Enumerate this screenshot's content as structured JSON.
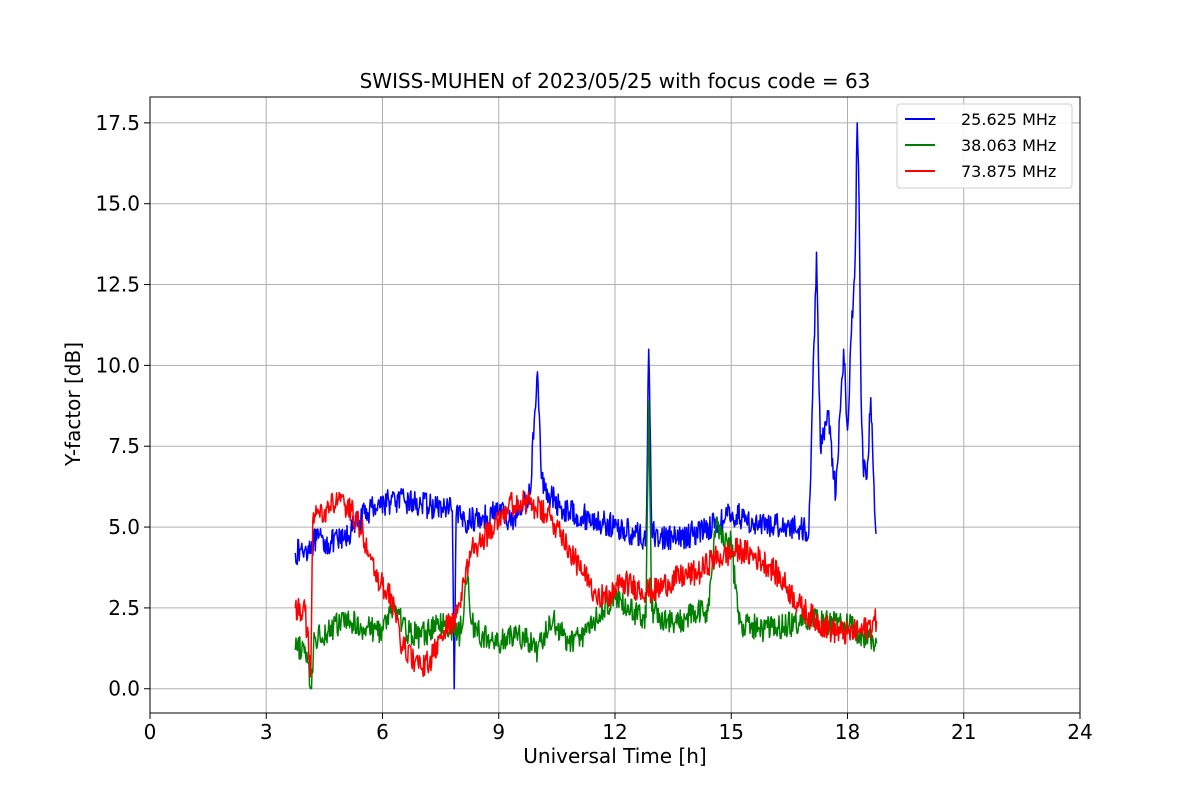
{
  "chart_data": {
    "type": "line",
    "title": "SWISS-MUHEN of 2023/05/25 with focus code = 63",
    "xlabel": "Universal Time [h]",
    "ylabel": "Y-factor [dB]",
    "xlim": [
      0,
      24
    ],
    "ylim": [
      -0.75,
      18.3
    ],
    "xticks": [
      0,
      3,
      6,
      9,
      12,
      15,
      18,
      21,
      24
    ],
    "xtick_labels": [
      "0",
      "3",
      "6",
      "9",
      "12",
      "15",
      "18",
      "21",
      "24"
    ],
    "yticks": [
      0.0,
      2.5,
      5.0,
      7.5,
      10.0,
      12.5,
      15.0,
      17.5
    ],
    "ytick_labels": [
      "0.0",
      "2.5",
      "5.0",
      "7.5",
      "10.0",
      "12.5",
      "15.0",
      "17.5"
    ],
    "grid": true,
    "legend_position": "top-right",
    "series": [
      {
        "name": "25.625 MHz",
        "color": "#0000ff",
        "x": [
          3.75,
          4.0,
          4.3,
          4.6,
          5.0,
          5.4,
          5.8,
          6.2,
          6.6,
          7.0,
          7.4,
          7.8,
          7.85,
          7.9,
          8.2,
          8.6,
          9.0,
          9.3,
          9.6,
          9.8,
          10.0,
          10.1,
          10.3,
          10.6,
          11.0,
          11.5,
          12.0,
          12.5,
          12.8,
          12.87,
          12.95,
          13.2,
          13.6,
          14.0,
          14.4,
          14.8,
          15.0,
          15.3,
          15.6,
          15.9,
          16.2,
          16.5,
          16.8,
          17.0,
          17.1,
          17.2,
          17.3,
          17.5,
          17.7,
          17.9,
          18.0,
          18.1,
          18.2,
          18.25,
          18.3,
          18.35,
          18.4,
          18.5,
          18.6,
          18.7,
          18.75
        ],
        "y": [
          4.2,
          4.3,
          4.6,
          4.5,
          4.6,
          5.2,
          5.7,
          5.8,
          5.8,
          5.7,
          5.6,
          5.5,
          0.0,
          5.3,
          5.2,
          5.3,
          5.5,
          5.2,
          5.6,
          6.0,
          9.8,
          6.5,
          6.0,
          5.6,
          5.4,
          5.2,
          5.0,
          4.8,
          4.6,
          10.5,
          4.8,
          4.7,
          4.6,
          4.8,
          5.0,
          5.2,
          5.4,
          5.3,
          5.1,
          5.0,
          5.1,
          5.0,
          5.0,
          4.8,
          9.0,
          13.5,
          7.5,
          8.5,
          6.0,
          10.5,
          8.0,
          11.0,
          13.5,
          17.5,
          15.0,
          9.0,
          7.0,
          6.5,
          9.0,
          5.5,
          4.8
        ]
      },
      {
        "name": "38.063 MHz",
        "color": "#008000",
        "x": [
          3.75,
          4.0,
          4.15,
          4.25,
          4.6,
          5.0,
          5.5,
          6.0,
          6.3,
          6.6,
          7.0,
          7.4,
          7.8,
          8.0,
          8.2,
          8.3,
          8.6,
          9.0,
          9.5,
          10.0,
          10.4,
          10.8,
          11.2,
          11.6,
          12.0,
          12.4,
          12.8,
          12.87,
          12.95,
          13.2,
          13.6,
          14.0,
          14.4,
          14.6,
          15.0,
          15.2,
          15.5,
          15.8,
          16.2,
          16.6,
          17.0,
          17.4,
          17.8,
          18.2,
          18.6,
          18.75
        ],
        "y": [
          1.2,
          1.3,
          0.0,
          1.6,
          1.8,
          2.1,
          1.9,
          1.8,
          2.6,
          1.8,
          1.6,
          2.0,
          1.9,
          1.7,
          3.5,
          2.0,
          1.6,
          1.4,
          1.7,
          1.2,
          2.1,
          1.4,
          1.7,
          2.3,
          2.8,
          2.4,
          2.2,
          8.9,
          2.4,
          2.2,
          2.0,
          2.3,
          2.4,
          5.0,
          4.5,
          2.0,
          2.0,
          1.8,
          1.9,
          2.0,
          2.2,
          2.0,
          2.1,
          1.8,
          1.5,
          1.4
        ]
      },
      {
        "name": "73.875 MHz",
        "color": "#ff0000",
        "x": [
          3.75,
          4.0,
          4.15,
          4.2,
          4.5,
          4.8,
          5.2,
          5.5,
          5.8,
          6.0,
          6.3,
          6.5,
          6.8,
          7.0,
          7.3,
          7.6,
          7.9,
          8.1,
          8.3,
          8.6,
          8.9,
          9.2,
          9.5,
          9.8,
          10.2,
          10.6,
          10.9,
          11.2,
          11.5,
          11.8,
          12.2,
          12.6,
          13.0,
          13.4,
          13.8,
          14.2,
          14.5,
          14.8,
          15.2,
          15.6,
          16.0,
          16.4,
          16.8,
          17.2,
          17.6,
          18.0,
          18.4,
          18.75
        ],
        "y": [
          2.5,
          2.4,
          0.5,
          5.2,
          5.5,
          5.8,
          5.5,
          4.8,
          3.5,
          3.2,
          2.6,
          1.3,
          0.9,
          0.6,
          1.0,
          1.8,
          2.2,
          3.3,
          4.3,
          4.6,
          5.2,
          5.6,
          5.8,
          5.7,
          5.4,
          4.9,
          4.1,
          3.5,
          3.0,
          2.8,
          3.3,
          3.1,
          3.0,
          3.3,
          3.5,
          3.6,
          4.0,
          4.1,
          4.3,
          4.1,
          3.8,
          3.2,
          2.5,
          2.1,
          1.8,
          1.7,
          1.8,
          2.1
        ]
      }
    ]
  }
}
